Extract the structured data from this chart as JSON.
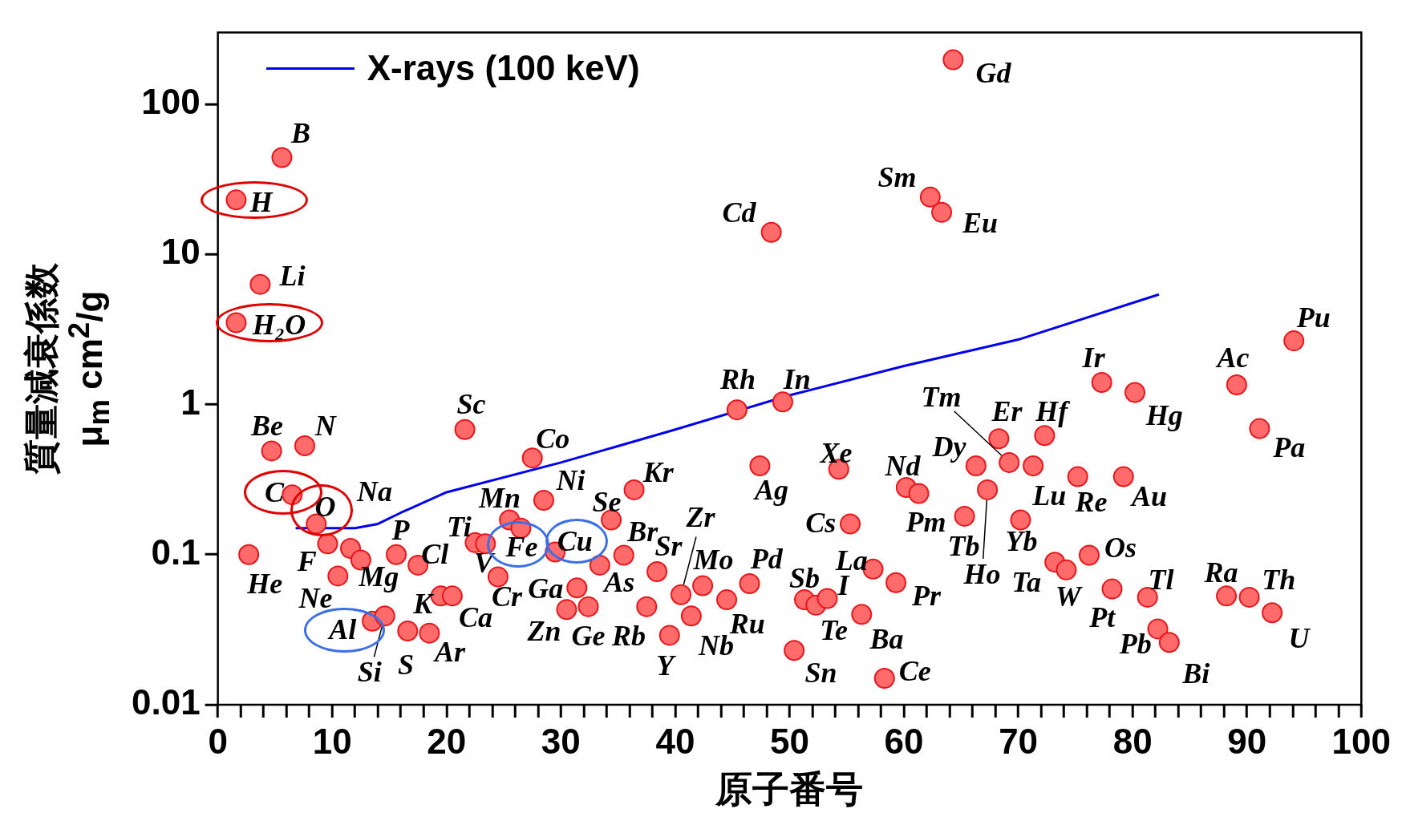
{
  "chart_data": {
    "type": "scatter",
    "xlabel": "原子番号",
    "ylabel": "質量減衰係数 μ$_{m}$  cm$^{2}$/g",
    "log": "y",
    "legend": "top left",
    "xlim": [
      0,
      100
    ],
    "ylim": [
      0.01,
      300
    ],
    "xticks": [
      0,
      {
        "value": 2,
        "label": null
      },
      {
        "value": 4,
        "label": null
      },
      {
        "value": 6,
        "label": null
      },
      {
        "value": 8,
        "label": null
      },
      10,
      {
        "value": 12,
        "label": null
      },
      {
        "value": 14,
        "label": null
      },
      {
        "value": 16,
        "label": null
      },
      {
        "value": 18,
        "label": null
      },
      20,
      {
        "value": 22,
        "label": null
      },
      {
        "value": 24,
        "label": null
      },
      {
        "value": 26,
        "label": null
      },
      {
        "value": 28,
        "label": null
      },
      30,
      {
        "value": 32,
        "label": null
      },
      {
        "value": 34,
        "label": null
      },
      {
        "value": 36,
        "label": null
      },
      {
        "value": 38,
        "label": null
      },
      40,
      {
        "value": 42,
        "label": null
      },
      {
        "value": 44,
        "label": null
      },
      {
        "value": 46,
        "label": null
      },
      {
        "value": 48,
        "label": null
      },
      50,
      {
        "value": 52,
        "label": null
      },
      {
        "value": 54,
        "label": null
      },
      {
        "value": 56,
        "label": null
      },
      {
        "value": 58,
        "label": null
      },
      60,
      {
        "value": 62,
        "label": null
      },
      {
        "value": 64,
        "label": null
      },
      {
        "value": 66,
        "label": null
      },
      {
        "value": 68,
        "label": null
      },
      70,
      {
        "value": 72,
        "label": null
      },
      {
        "value": 74,
        "label": null
      },
      {
        "value": 76,
        "label": null
      },
      {
        "value": 78,
        "label": null
      },
      80,
      {
        "value": 82,
        "label": null
      },
      {
        "value": 84,
        "label": null
      },
      {
        "value": 86,
        "label": null
      },
      {
        "value": 88,
        "label": null
      },
      90,
      {
        "value": 92,
        "label": null
      },
      {
        "value": 94,
        "label": null
      },
      {
        "value": 96,
        "label": null
      },
      {
        "value": 98,
        "label": null
      },
      100
    ],
    "yticks": [
      0.01,
      0.1,
      1,
      10,
      100
    ],
    "series": [
      {
        "type": "scatter",
        "color": "#ff6b6b",
        "marker": "circle",
        "x": [
          1.6,
          1.6,
          2.7,
          3.7,
          4.7,
          5.6,
          6.5,
          7.6,
          8.6,
          9.6,
          10.5,
          11.6,
          12.5,
          13.5,
          14.6,
          15.6,
          16.6,
          17.5,
          18.5,
          19.5,
          20.5,
          21.6,
          22.5,
          23.4,
          24.5,
          25.5,
          26.5,
          27.5,
          28.5,
          29.5,
          30.5,
          31.4,
          32.4,
          33.4,
          34.4,
          35.5,
          36.4,
          37.5,
          38.4,
          39.5,
          40.5,
          41.4,
          42.4,
          44.5,
          45.4,
          46.5,
          47.4,
          48.4,
          49.4,
          50.4,
          51.3,
          52.3,
          53.3,
          54.3,
          55.3,
          56.3,
          57.3,
          58.3,
          59.3,
          60.2,
          61.3,
          62.3,
          63.3,
          64.3,
          65.3,
          66.3,
          67.3,
          68.3,
          69.2,
          70.2,
          71.3,
          72.3,
          73.2,
          74.2,
          75.2,
          76.2,
          77.3,
          78.2,
          79.2,
          80.2,
          81.3,
          82.2,
          83.2,
          88.2,
          89.1,
          90.2,
          91.1,
          92.2,
          94.1
        ],
        "values": [
          23,
          3.5,
          0.1,
          6.3,
          0.49,
          44,
          0.25,
          0.53,
          0.16,
          0.118,
          0.072,
          0.11,
          0.092,
          0.036,
          0.039,
          0.1,
          0.031,
          0.085,
          0.03,
          0.053,
          0.053,
          0.68,
          0.12,
          0.118,
          0.071,
          0.17,
          0.15,
          0.44,
          0.23,
          0.104,
          0.043,
          0.06,
          0.045,
          0.085,
          0.17,
          0.099,
          0.27,
          0.045,
          0.077,
          0.029,
          0.054,
          0.039,
          0.062,
          0.05,
          0.92,
          0.064,
          0.39,
          14,
          1.04,
          0.023,
          0.05,
          0.046,
          0.051,
          0.37,
          0.16,
          0.04,
          0.08,
          0.015,
          0.065,
          0.28,
          0.255,
          24,
          19,
          197,
          0.18,
          0.39,
          0.27,
          0.59,
          0.41,
          0.17,
          0.39,
          0.62,
          0.089,
          0.079,
          0.33,
          0.099,
          1.4,
          0.059,
          0.33,
          1.2,
          0.052,
          0.032,
          0.026,
          0.053,
          1.35,
          0.052,
          0.69,
          0.041,
          2.65
        ],
        "value_labels": [
          "H",
          "H₂O",
          "He",
          "Li",
          "Be",
          "B",
          "C",
          "N",
          "O",
          "F",
          "Ne",
          "Na",
          "Mg",
          "Al",
          "Si",
          "P",
          "S",
          "Cl",
          "Ar",
          "K",
          "Ca",
          "Sc",
          "Ti",
          "V",
          "Cr",
          "Mn",
          "Fe",
          "Co",
          "Ni",
          "Cu",
          "Zn",
          "Ga",
          "Ge",
          "As",
          "Se",
          "Br",
          "Kr",
          "Rb",
          "Sr",
          "Y",
          "Zr",
          "Nb",
          "Mo",
          "Ru",
          "Rh",
          "Pd",
          "Ag",
          "Cd",
          "In",
          "Sn",
          "Sb",
          "Te",
          "I",
          "Xe",
          "Cs",
          "Ba",
          "La",
          "Ce",
          "Pr",
          "Nd",
          "Pm",
          "Sm",
          "Eu",
          "Gd",
          "Tb",
          "Dy",
          "Ho",
          "Er",
          "Tm",
          "Yb",
          "Lu",
          "Hf",
          "Ta",
          "W",
          "Re",
          "Os",
          "Ir",
          "Pt",
          "Au",
          "Hg",
          "Tl",
          "Pb",
          "Bi",
          "Ra",
          "Ac",
          "Th",
          "Pa",
          "U",
          "Pu"
        ]
      },
      {
        "type": "line",
        "name": "X-rays (100 keV)",
        "color": "#0000ee",
        "marker": "none",
        "x": [
          6.8,
          12,
          14,
          16,
          20,
          30,
          40,
          50,
          60,
          70,
          82.3
        ],
        "values": [
          0.15,
          0.15,
          0.16,
          0.19,
          0.26,
          0.41,
          0.68,
          1.15,
          1.8,
          2.7,
          5.4
        ]
      }
    ]
  }
}
